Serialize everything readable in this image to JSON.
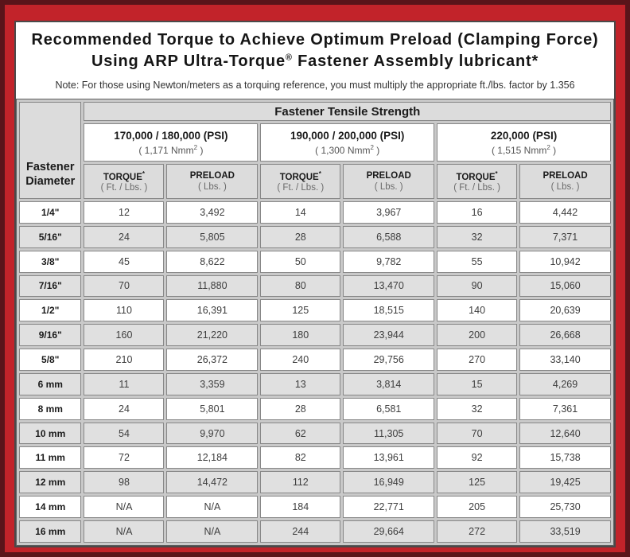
{
  "colors": {
    "frame_outer": "#5a141a",
    "frame_red": "#c2232a",
    "row_alt": "#e0e0e0",
    "header_gray": "#dcdcdc"
  },
  "title": {
    "line1": "Recommended Torque to Achieve Optimum Preload (Clamping Force)",
    "line2_pre": "Using ARP Ultra-Torque",
    "line2_sup": "®",
    "line2_post": " Fastener Assembly lubricant*"
  },
  "note": "Note: For those using Newton/meters as a torquing reference, you must multiply the appropriate ft./lbs. factor by 1.356",
  "table": {
    "corner": {
      "line1": "Fastener",
      "line2": "Diameter"
    },
    "tensile_header": "Fastener Tensile Strength",
    "groups": [
      {
        "psi": "170,000 / 180,000 (PSI)",
        "nmm": "( 1,171 Nmm",
        "nmm_sup": "2",
        "nmm_close": " )"
      },
      {
        "psi": "190,000 / 200,000 (PSI)",
        "nmm": "( 1,300 Nmm",
        "nmm_sup": "2",
        "nmm_close": " )"
      },
      {
        "psi": "220,000 (PSI)",
        "nmm": "( 1,515 Nmm",
        "nmm_sup": "2",
        "nmm_close": " )"
      }
    ],
    "col_headers": {
      "torque_label": "TORQUE",
      "torque_sup": "*",
      "torque_unit": "( Ft. / Lbs. )",
      "preload_label": "PRELOAD",
      "preload_unit": "( Lbs. )"
    },
    "rows": [
      {
        "diameter": "1/4\"",
        "values": [
          "12",
          "3,492",
          "14",
          "3,967",
          "16",
          "4,442"
        ]
      },
      {
        "diameter": "5/16\"",
        "values": [
          "24",
          "5,805",
          "28",
          "6,588",
          "32",
          "7,371"
        ]
      },
      {
        "diameter": "3/8\"",
        "values": [
          "45",
          "8,622",
          "50",
          "9,782",
          "55",
          "10,942"
        ]
      },
      {
        "diameter": "7/16\"",
        "values": [
          "70",
          "11,880",
          "80",
          "13,470",
          "90",
          "15,060"
        ]
      },
      {
        "diameter": "1/2\"",
        "values": [
          "110",
          "16,391",
          "125",
          "18,515",
          "140",
          "20,639"
        ]
      },
      {
        "diameter": "9/16\"",
        "values": [
          "160",
          "21,220",
          "180",
          "23,944",
          "200",
          "26,668"
        ]
      },
      {
        "diameter": "5/8\"",
        "values": [
          "210",
          "26,372",
          "240",
          "29,756",
          "270",
          "33,140"
        ]
      },
      {
        "diameter": "6 mm",
        "values": [
          "11",
          "3,359",
          "13",
          "3,814",
          "15",
          "4,269"
        ]
      },
      {
        "diameter": "8 mm",
        "values": [
          "24",
          "5,801",
          "28",
          "6,581",
          "32",
          "7,361"
        ]
      },
      {
        "diameter": "10 mm",
        "values": [
          "54",
          "9,970",
          "62",
          "11,305",
          "70",
          "12,640"
        ]
      },
      {
        "diameter": "11 mm",
        "values": [
          "72",
          "12,184",
          "82",
          "13,961",
          "92",
          "15,738"
        ]
      },
      {
        "diameter": "12 mm",
        "values": [
          "98",
          "14,472",
          "112",
          "16,949",
          "125",
          "19,425"
        ]
      },
      {
        "diameter": "14 mm",
        "values": [
          "N/A",
          "N/A",
          "184",
          "22,771",
          "205",
          "25,730"
        ]
      },
      {
        "diameter": "16 mm",
        "values": [
          "N/A",
          "N/A",
          "244",
          "29,664",
          "272",
          "33,519"
        ]
      }
    ]
  }
}
